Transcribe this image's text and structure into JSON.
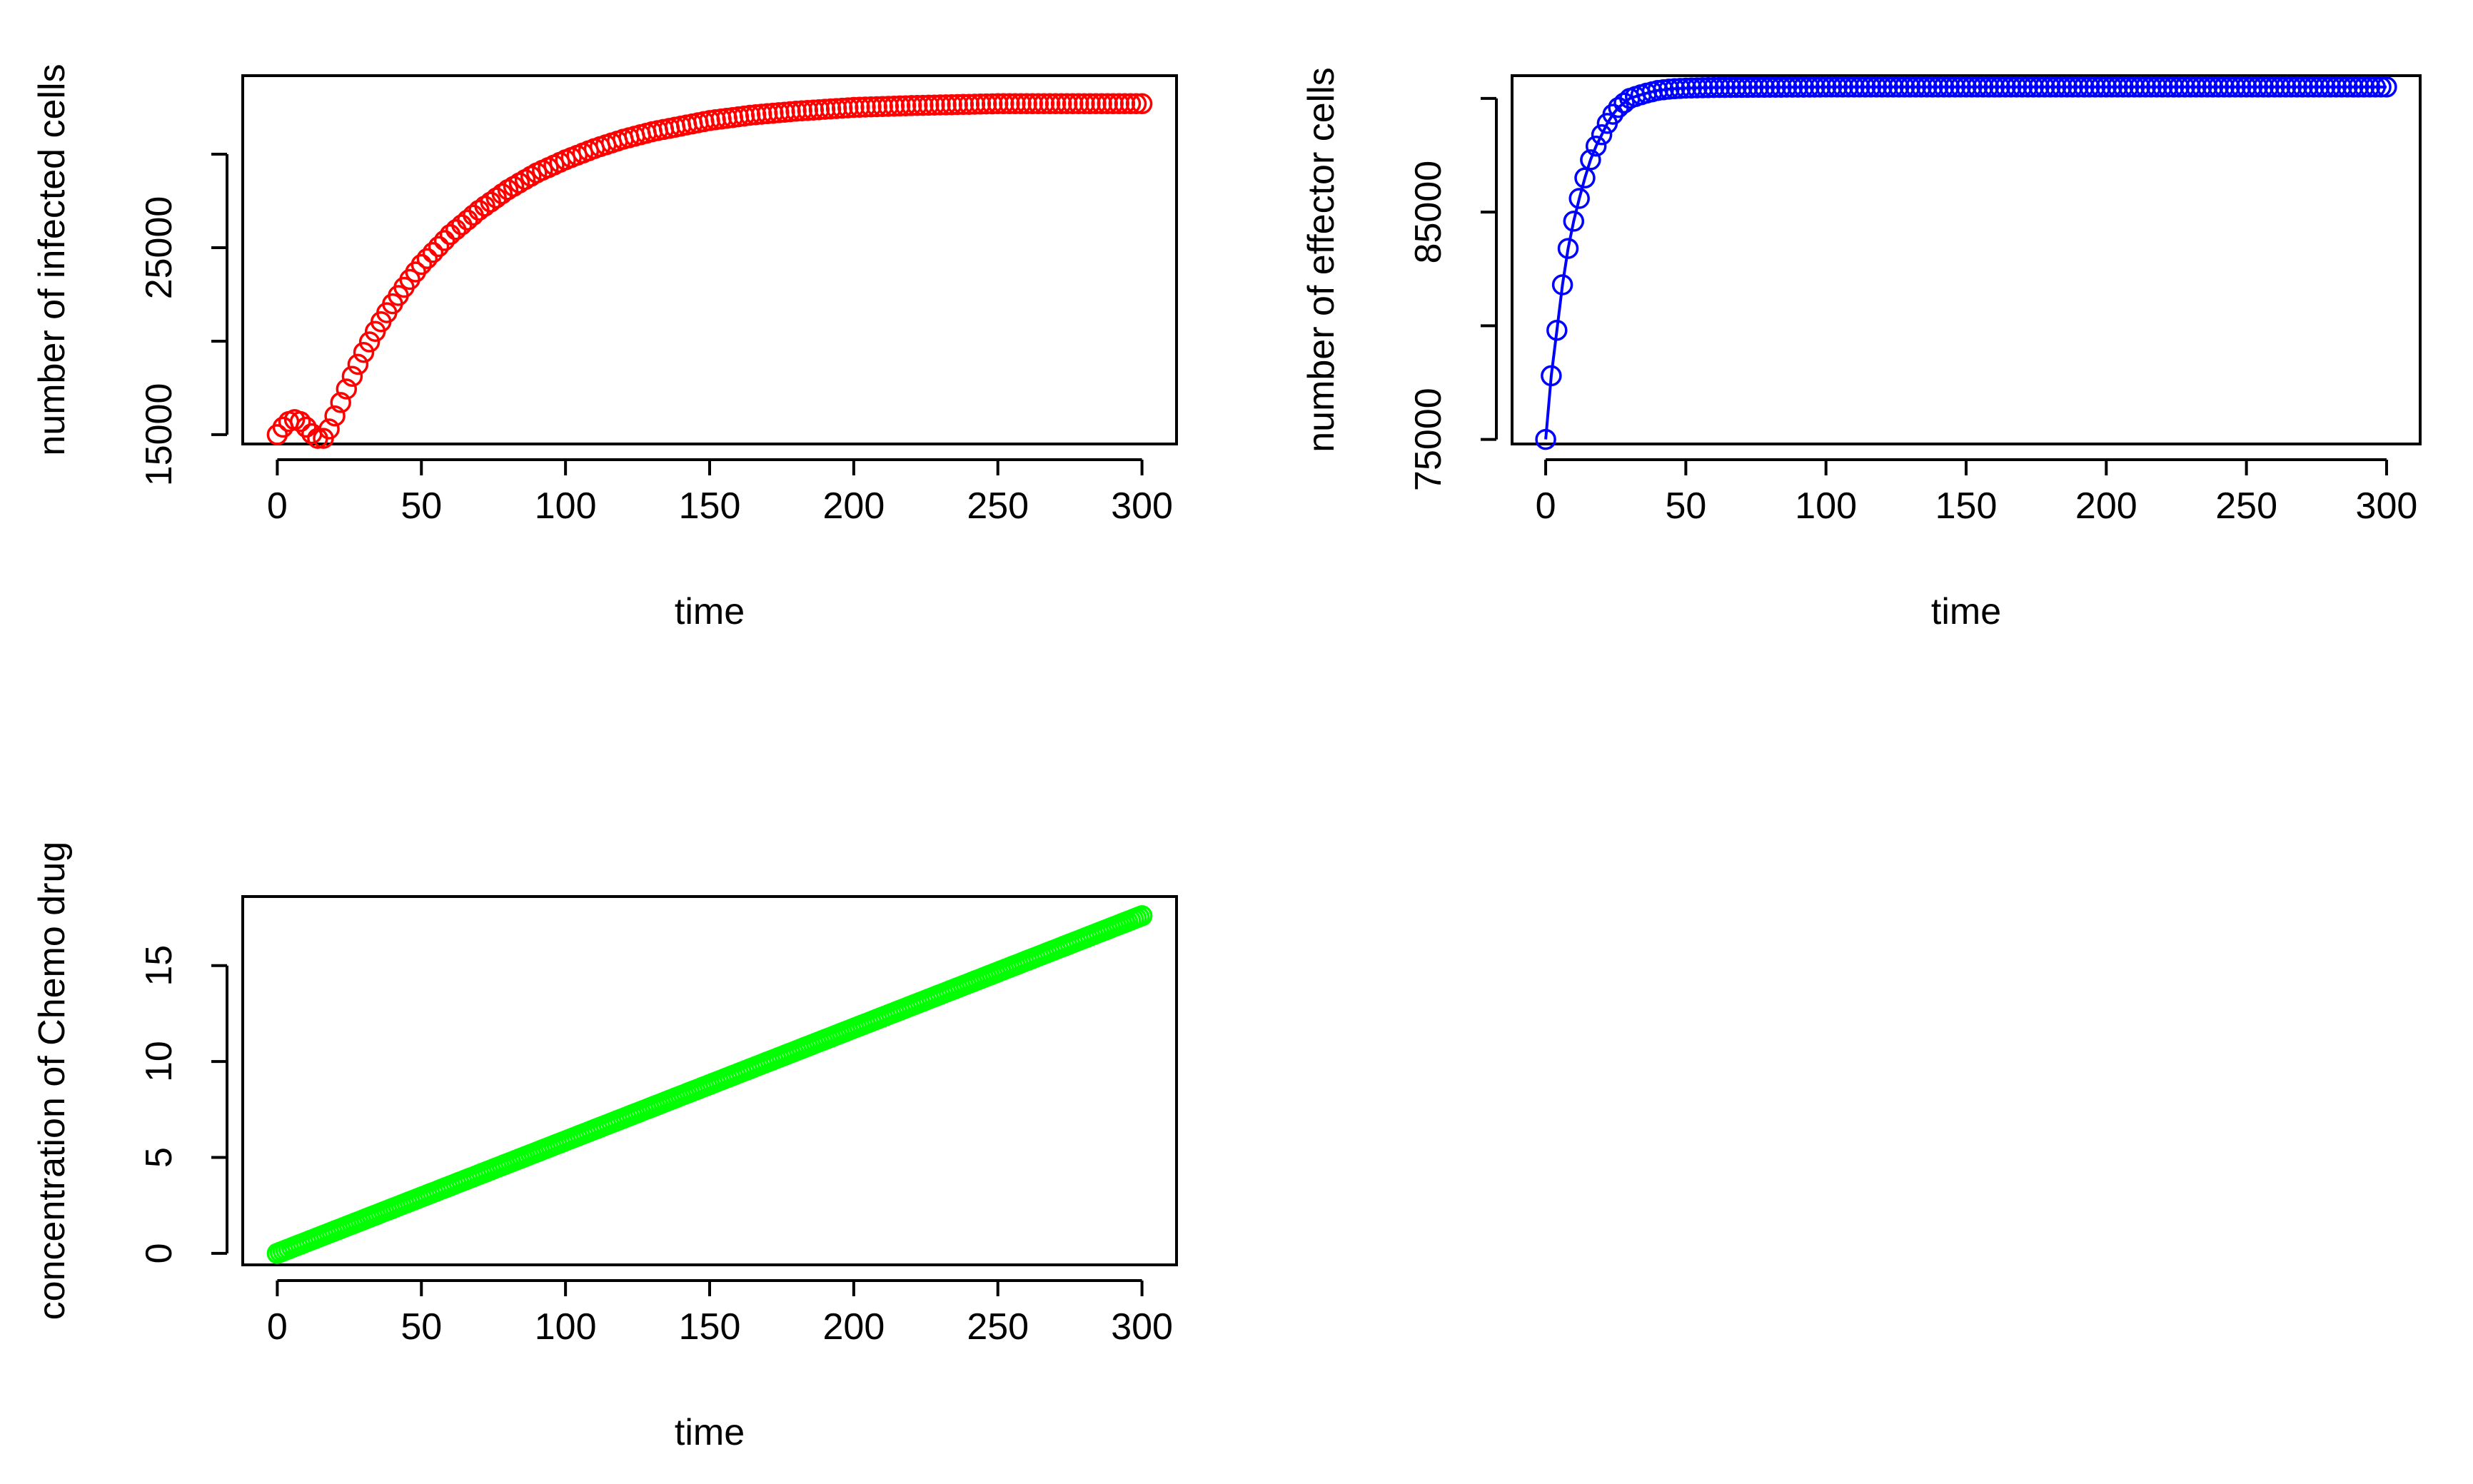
{
  "chart_data": [
    {
      "type": "line",
      "title": "",
      "xlabel": "time",
      "ylabel": "number of infected cells",
      "xlim": [
        0,
        300
      ],
      "ylim": [
        14500,
        34200
      ],
      "xticks": [
        0,
        50,
        100,
        150,
        200,
        250,
        300
      ],
      "yticks": [
        15000,
        20000,
        25000,
        30000
      ],
      "ytick_labels": [
        "15000",
        "",
        "25000",
        ""
      ],
      "color": "#ff0000",
      "marker": "open-circle",
      "connected": false,
      "point_step": 2,
      "grid": false,
      "series": [
        {
          "points": [
            [
              0,
              15000
            ],
            [
              2,
              15400
            ],
            [
              4,
              15700
            ],
            [
              6,
              15800
            ],
            [
              8,
              15700
            ],
            [
              10,
              15400
            ],
            [
              12,
              15050
            ],
            [
              14,
              14800
            ],
            [
              15,
              14700
            ],
            [
              16,
              14800
            ],
            [
              18,
              15300
            ],
            [
              20,
              16000
            ],
            [
              25,
              17800
            ],
            [
              30,
              19400
            ],
            [
              35,
              20800
            ],
            [
              40,
              22000
            ],
            [
              45,
              23100
            ],
            [
              50,
              24100
            ],
            [
              60,
              25700
            ],
            [
              70,
              27000
            ],
            [
              80,
              28100
            ],
            [
              90,
              29000
            ],
            [
              100,
              29700
            ],
            [
              110,
              30300
            ],
            [
              120,
              30800
            ],
            [
              130,
              31200
            ],
            [
              140,
              31500
            ],
            [
              150,
              31800
            ],
            [
              165,
              32100
            ],
            [
              180,
              32300
            ],
            [
              200,
              32500
            ],
            [
              220,
              32600
            ],
            [
              250,
              32700
            ],
            [
              300,
              32700
            ]
          ]
        }
      ]
    },
    {
      "type": "line",
      "title": "",
      "xlabel": "time",
      "ylabel": "number of effector cells",
      "xlim": [
        0,
        300
      ],
      "ylim": [
        74800,
        91000
      ],
      "xticks": [
        0,
        50,
        100,
        150,
        200,
        250,
        300
      ],
      "yticks": [
        75000,
        80000,
        85000,
        90000
      ],
      "ytick_labels": [
        "75000",
        "",
        "85000",
        ""
      ],
      "color": "#0000ff",
      "marker": "open-circle",
      "connected": true,
      "point_step": 2,
      "grid": false,
      "series": [
        {
          "points": [
            [
              0,
              75000
            ],
            [
              2,
              77800
            ],
            [
              4,
              79800
            ],
            [
              6,
              81800
            ],
            [
              8,
              83400
            ],
            [
              10,
              84600
            ],
            [
              12,
              85600
            ],
            [
              14,
              86500
            ],
            [
              16,
              87300
            ],
            [
              18,
              87900
            ],
            [
              20,
              88400
            ],
            [
              22,
              88900
            ],
            [
              24,
              89300
            ],
            [
              26,
              89600
            ],
            [
              28,
              89800
            ],
            [
              30,
              90000
            ],
            [
              35,
              90200
            ],
            [
              40,
              90350
            ],
            [
              45,
              90420
            ],
            [
              50,
              90450
            ],
            [
              60,
              90480
            ],
            [
              100,
              90500
            ],
            [
              300,
              90500
            ]
          ]
        }
      ]
    },
    {
      "type": "line",
      "title": "",
      "xlabel": "time",
      "ylabel": "concentration of Chemo drug",
      "xlim": [
        0,
        300
      ],
      "ylim": [
        -0.6,
        18.6
      ],
      "xticks": [
        0,
        50,
        100,
        150,
        200,
        250,
        300
      ],
      "yticks": [
        0,
        5,
        10,
        15
      ],
      "ytick_labels": [
        "0",
        "5",
        "10",
        "15"
      ],
      "color": "#00ff00",
      "marker": "open-circle",
      "connected": false,
      "point_step": 1,
      "grid": false,
      "series": [
        {
          "points": [
            [
              0,
              0
            ],
            [
              300,
              17.6
            ]
          ]
        }
      ]
    }
  ]
}
